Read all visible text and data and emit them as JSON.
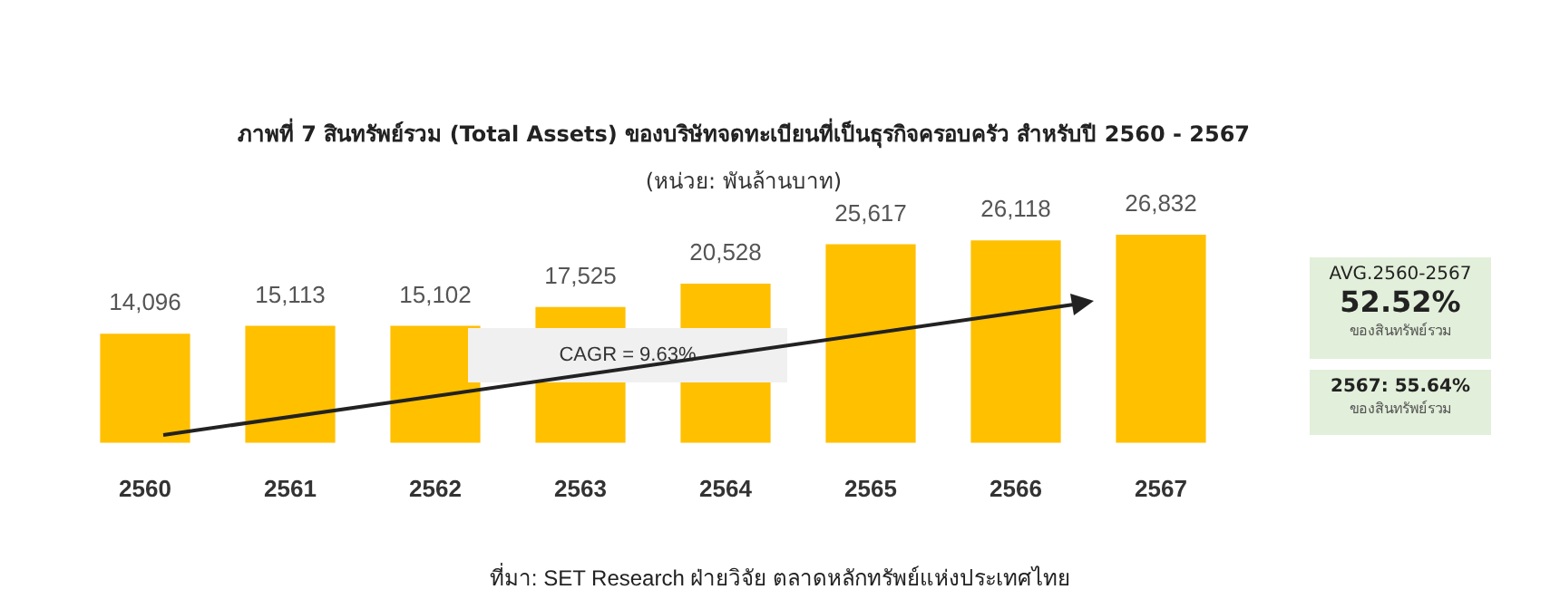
{
  "chart_data": {
    "type": "bar",
    "title": "ภาพที่ 7 สินทรัพย์รวม (Total Assets) ของบริษัทจดทะเบียนที่เป็นธุรกิจครอบครัว สำหรับปี 2560 - 2567",
    "subtitle": "(หน่วย: พันล้านบาท)",
    "categories": [
      "2560",
      "2561",
      "2562",
      "2563",
      "2564",
      "2565",
      "2566",
      "2567"
    ],
    "values": [
      14096,
      15113,
      15102,
      17525,
      20528,
      25617,
      26118,
      26832
    ],
    "color": "#ffc000",
    "value_labels": [
      "14,096",
      "15,113",
      "15,102",
      "17,525",
      "20,528",
      "25,617",
      "26,118",
      "26,832"
    ],
    "grid": false,
    "legend": false,
    "annotations": [
      "CAGR = 9.63%",
      "AVG.2560-2567",
      "52.52%",
      "ของสินทรัพย์รวม",
      "2567: 55.64%",
      "ของสินทรัพย์รวม",
      "ที่มา: SET Research ฝ่ายวิจัย ตลาดหลักทรัพย์แห่งประเทศไทย"
    ]
  }
}
